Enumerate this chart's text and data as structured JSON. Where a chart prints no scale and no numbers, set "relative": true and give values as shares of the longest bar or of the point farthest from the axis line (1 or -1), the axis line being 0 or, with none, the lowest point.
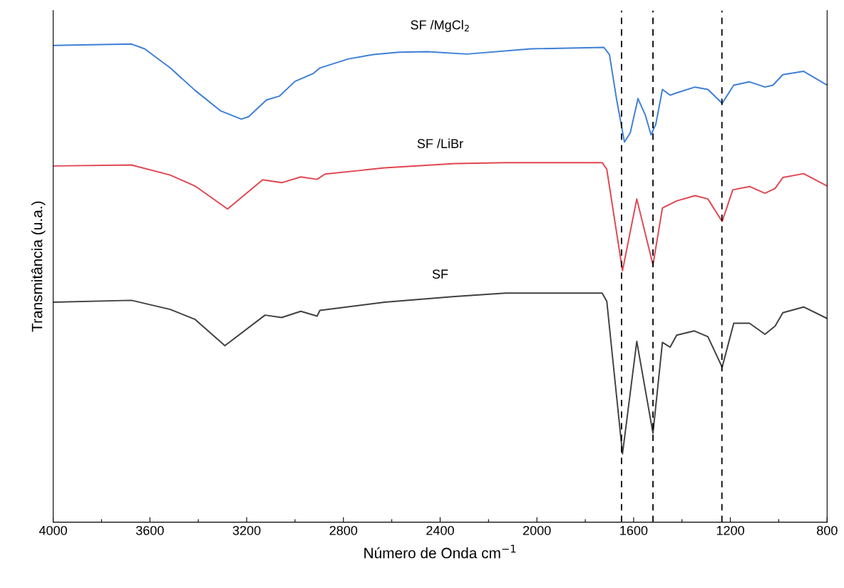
{
  "chart_data": {
    "type": "line",
    "xlabel": "Número de Onda cm$^{−1}$",
    "ylabel": "Transmitância (u.a.)",
    "relative": true,
    "tick_labels": "x",
    "xlim": [
      4000,
      800
    ],
    "xticks": [
      4000,
      {
        "value": 3800,
        "label": null
      },
      3600,
      {
        "value": 3400,
        "label": null
      },
      3200,
      {
        "value": 3000,
        "label": null
      },
      2800,
      {
        "value": 2600,
        "label": null
      },
      2400,
      {
        "value": 2200,
        "label": null
      },
      2000,
      {
        "value": 1800,
        "label": null
      },
      1600,
      {
        "value": 1400,
        "label": null
      },
      1200,
      {
        "value": 1000,
        "label": null
      },
      800
    ],
    "series": [
      {
        "name": "SF /MgCl$_{2}$",
        "color": "#3d7fd6",
        "x": [
          4000,
          3676,
          3622,
          3516,
          3413,
          3307,
          3222,
          3192,
          3118,
          3065,
          3000,
          2926,
          2897,
          2779,
          2676,
          2570,
          2452,
          2290,
          2024,
          1723,
          1700,
          1670,
          1638,
          1614,
          1582,
          1552,
          1528,
          1508,
          1481,
          1449,
          1422,
          1346,
          1293,
          1234,
          1186,
          1121,
          1057,
          1024,
          983,
          897,
          800
        ],
        "values": [
          0.997,
          1.0,
          0.99,
          0.95,
          0.903,
          0.86,
          0.843,
          0.848,
          0.883,
          0.891,
          0.922,
          0.938,
          0.95,
          0.969,
          0.978,
          0.983,
          0.984,
          0.979,
          0.99,
          0.993,
          0.978,
          0.883,
          0.795,
          0.814,
          0.886,
          0.852,
          0.81,
          0.833,
          0.905,
          0.893,
          0.898,
          0.91,
          0.905,
          0.876,
          0.914,
          0.921,
          0.91,
          0.914,
          0.936,
          0.943,
          0.914
        ]
      },
      {
        "name": "SF /LiBr",
        "color": "#e04650",
        "x": [
          4000,
          3676,
          3516,
          3413,
          3279,
          3134,
          3055,
          2976,
          2909,
          2876,
          2630,
          2339,
          2130,
          1730,
          1711,
          1646,
          1587,
          1520,
          1481,
          1422,
          1346,
          1293,
          1234,
          1190,
          1121,
          1057,
          1015,
          983,
          897,
          800
        ],
        "values": [
          0.745,
          0.747,
          0.726,
          0.703,
          0.655,
          0.716,
          0.71,
          0.722,
          0.717,
          0.728,
          0.741,
          0.75,
          0.752,
          0.752,
          0.738,
          0.526,
          0.676,
          0.538,
          0.657,
          0.672,
          0.683,
          0.676,
          0.629,
          0.695,
          0.702,
          0.688,
          0.698,
          0.721,
          0.729,
          0.703
        ]
      },
      {
        "name": "SF",
        "color": "#404040",
        "x": [
          4000,
          3676,
          3516,
          3413,
          3290,
          3124,
          3055,
          2976,
          2909,
          2897,
          2630,
          2339,
          2130,
          1730,
          1711,
          1646,
          1587,
          1520,
          1481,
          1449,
          1422,
          1349,
          1293,
          1234,
          1186,
          1121,
          1057,
          1015,
          983,
          897,
          800
        ],
        "values": [
          0.46,
          0.464,
          0.445,
          0.424,
          0.369,
          0.433,
          0.428,
          0.441,
          0.431,
          0.443,
          0.46,
          0.472,
          0.479,
          0.479,
          0.462,
          0.143,
          0.378,
          0.186,
          0.376,
          0.366,
          0.391,
          0.4,
          0.388,
          0.324,
          0.416,
          0.416,
          0.393,
          0.41,
          0.438,
          0.45,
          0.426
        ]
      }
    ],
    "ref_lines": [
      {
        "axis": "x",
        "value": 1650,
        "color": "#000000",
        "line_style": "dashed"
      },
      {
        "axis": "x",
        "value": 1520,
        "color": "#000000",
        "line_style": "dashed"
      },
      {
        "axis": "x",
        "value": 1235,
        "color": "#000000",
        "line_style": "dashed"
      }
    ]
  }
}
